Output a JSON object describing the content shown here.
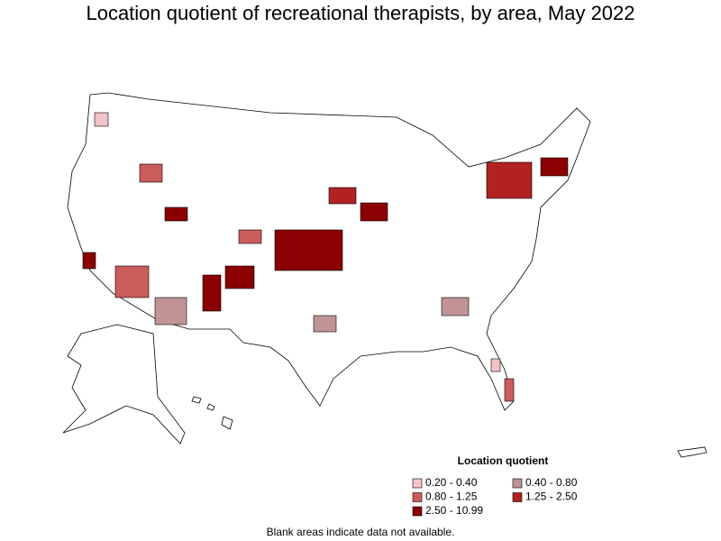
{
  "title": "Location quotient of recreational therapists, by area, May 2022",
  "legend": {
    "title": "Location quotient",
    "items": [
      {
        "label": "0.20 - 0.40",
        "color": "#f4c2c8"
      },
      {
        "label": "0.40 - 0.80",
        "color": "#c09494"
      },
      {
        "label": "0.80 - 1.25",
        "color": "#cd5c5c"
      },
      {
        "label": "1.25 - 2.50",
        "color": "#b22222"
      },
      {
        "label": "2.50 - 10.99",
        "color": "#8b0000"
      }
    ]
  },
  "note": "Blank areas indicate data not available."
}
